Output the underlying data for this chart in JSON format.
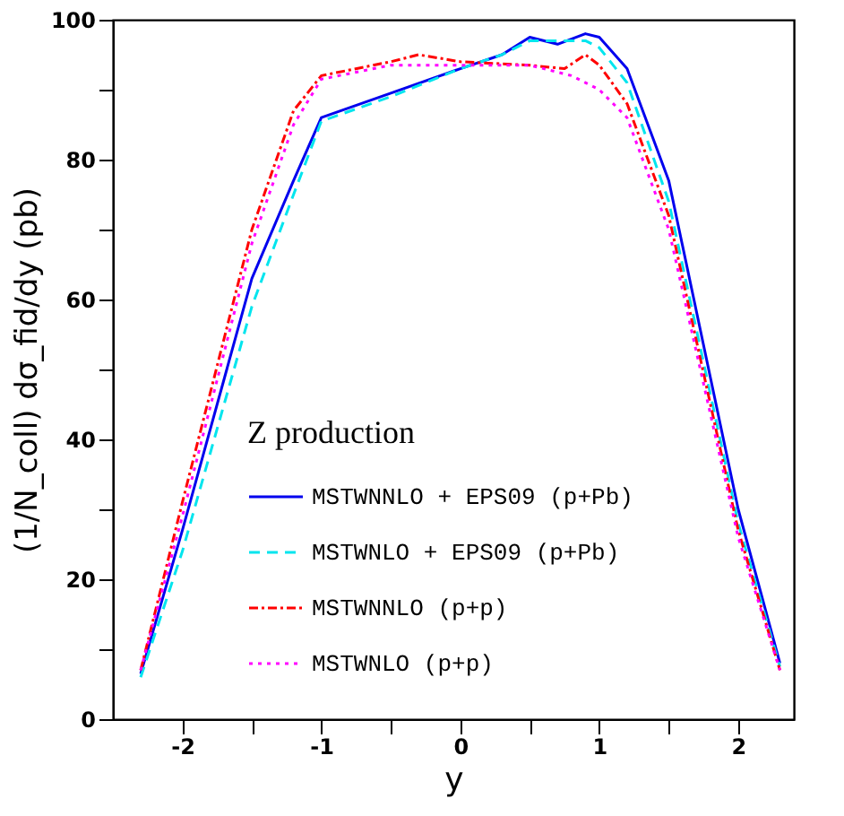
{
  "chart_data": {
    "type": "line",
    "xlabel": "y",
    "ylabel": "(1/N_coll) dσ_fid/dy (pb)",
    "legend_title": "Z production",
    "legend": "bottom",
    "grid": false,
    "xlim": [
      -2.5,
      2.4
    ],
    "ylim": [
      0,
      100
    ],
    "xticks": [
      -2,
      {
        "value": -1.5,
        "label": null
      },
      -1,
      {
        "value": -0.5,
        "label": null
      },
      0,
      {
        "value": 0.5,
        "label": null
      },
      1,
      {
        "value": 1.5,
        "label": null
      },
      2
    ],
    "yticks": [
      0,
      {
        "value": 10,
        "label": null
      },
      20,
      {
        "value": 30,
        "label": null
      },
      40,
      {
        "value": 50,
        "label": null
      },
      60,
      {
        "value": 70,
        "label": null
      },
      80,
      {
        "value": 90,
        "label": null
      },
      100
    ],
    "series": [
      {
        "name": "MSTWNNLO + EPS09 (p+Pb)",
        "color": "#0000ee",
        "line_style": "solid",
        "x": [
          -2.3,
          -2,
          -1.5,
          -1.2,
          -1,
          -0.5,
          0,
          0.3,
          0.5,
          0.7,
          0.9,
          1.0,
          1.2,
          1.5,
          2,
          2.3
        ],
        "values": [
          6.5,
          27,
          63,
          77,
          86,
          89.5,
          93,
          95,
          97.5,
          96.5,
          98,
          97.5,
          93,
          77,
          30,
          8
        ]
      },
      {
        "name": "MSTWNLO + EPS09 (p+Pb)",
        "color": "#00e5ee",
        "line_style": "dashed",
        "x": [
          -2.3,
          -2,
          -1.5,
          -1.2,
          -1,
          -0.5,
          0,
          0.3,
          0.5,
          0.7,
          0.9,
          1.0,
          1.2,
          1.5,
          2,
          2.3
        ],
        "values": [
          6,
          24,
          59,
          75,
          85.5,
          89,
          93,
          95,
          97,
          97,
          97,
          96,
          91,
          74,
          28,
          7.5
        ]
      },
      {
        "name": "MSTWNNLO (p+p)",
        "color": "#ff0000",
        "line_style": "dashdot",
        "x": [
          -2.3,
          -2,
          -1.5,
          -1.2,
          -1,
          -0.5,
          -0.3,
          0,
          0.5,
          0.75,
          0.9,
          1.0,
          1.2,
          1.5,
          2,
          2.3
        ],
        "values": [
          7,
          31,
          70,
          87,
          92,
          94,
          95,
          94,
          93.5,
          93,
          95,
          93.5,
          88,
          72,
          27,
          7
        ]
      },
      {
        "name": "MSTWNLO (p+p)",
        "color": "#ff00ff",
        "line_style": "dotted",
        "x": [
          -2.3,
          -2,
          -1.5,
          -1.2,
          -1,
          -0.5,
          0,
          0.5,
          0.8,
          1.0,
          1.2,
          1.5,
          2,
          2.3
        ],
        "values": [
          7,
          29,
          68,
          85,
          91.5,
          93.5,
          93.5,
          93.5,
          92,
          90,
          86,
          70,
          26,
          7
        ]
      }
    ]
  }
}
